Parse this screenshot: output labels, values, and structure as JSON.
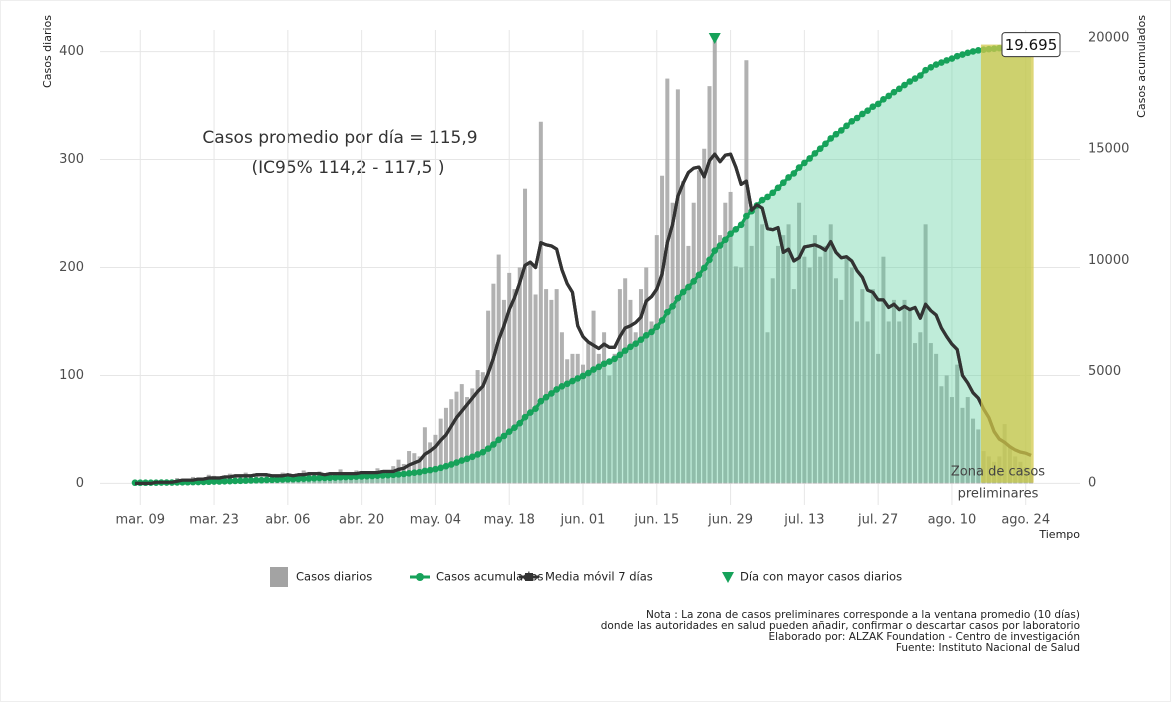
{
  "chart_data": {
    "type": "combo",
    "ylabel": "Casos diarios",
    "y2label": "Casos acumulados",
    "xlabel": "Tiempo",
    "annotations": [
      "Casos promedio por día = 115,9",
      "(IC95% 114,2 - 117,5 )"
    ],
    "notes": [
      "Nota :  La zona de casos preliminares corresponde a la ventana promedio (10 días)",
      "donde las autoridades en salud pueden añadir, confirmar o descartar casos por laboratorio",
      "Elaborado por: ALZAK Foundation - Centro de investigación",
      "Fuente: Instituto Nacional de Salud"
    ],
    "ylim": [
      -20,
      420
    ],
    "yticks": [
      0,
      100,
      200,
      300,
      400
    ],
    "y2lim": [
      -1000,
      20350
    ],
    "y2ticks": [
      0,
      5000,
      10000,
      15000,
      20000
    ],
    "grid": true,
    "area_color": "#5fd0a0",
    "categories": [
      null,
      "mar. 09",
      null,
      null,
      null,
      null,
      null,
      null,
      null,
      null,
      null,
      null,
      null,
      null,
      null,
      "mar. 23",
      null,
      null,
      null,
      null,
      null,
      null,
      null,
      null,
      null,
      null,
      null,
      null,
      null,
      "abr. 06",
      null,
      null,
      null,
      null,
      null,
      null,
      null,
      null,
      null,
      null,
      null,
      null,
      null,
      "abr. 20",
      null,
      null,
      null,
      null,
      null,
      null,
      null,
      null,
      null,
      null,
      null,
      null,
      null,
      "may. 04",
      null,
      null,
      null,
      null,
      null,
      null,
      null,
      null,
      null,
      null,
      null,
      null,
      null,
      "may. 18",
      null,
      null,
      null,
      null,
      null,
      null,
      null,
      null,
      null,
      null,
      null,
      null,
      null,
      "jun. 01",
      null,
      null,
      null,
      null,
      null,
      null,
      null,
      null,
      null,
      null,
      null,
      null,
      null,
      "jun. 15",
      null,
      null,
      null,
      null,
      null,
      null,
      null,
      null,
      null,
      null,
      null,
      null,
      null,
      "jun. 29",
      null,
      null,
      null,
      null,
      null,
      null,
      null,
      null,
      null,
      null,
      null,
      null,
      null,
      "jul. 13",
      null,
      null,
      null,
      null,
      null,
      null,
      null,
      null,
      null,
      null,
      null,
      null,
      null,
      "jul. 27",
      null,
      null,
      null,
      null,
      null,
      null,
      null,
      null,
      null,
      null,
      null,
      null,
      null,
      "ago. 10",
      null,
      null,
      null,
      null,
      null,
      null,
      null,
      null,
      null,
      null,
      null,
      null,
      null,
      "ago. 24",
      null
    ],
    "series": [
      {
        "name": "Casos diarios",
        "type": "bar",
        "color": "#a3a3a3",
        "values": [
          1,
          0,
          0,
          1,
          2,
          3,
          1,
          2,
          5,
          4,
          3,
          6,
          5,
          4,
          8,
          7,
          5,
          6,
          9,
          8,
          6,
          10,
          7,
          9,
          5,
          8,
          6,
          7,
          10,
          9,
          6,
          8,
          12,
          9,
          7,
          11,
          6,
          8,
          10,
          13,
          9,
          7,
          12,
          8,
          11,
          10,
          14,
          12,
          9,
          16,
          22,
          18,
          30,
          28,
          25,
          52,
          38,
          45,
          60,
          70,
          78,
          85,
          92,
          80,
          88,
          105,
          103,
          160,
          185,
          212,
          170,
          195,
          180,
          200,
          273,
          205,
          175,
          335,
          180,
          170,
          180,
          140,
          115,
          120,
          120,
          110,
          130,
          160,
          120,
          140,
          100,
          120,
          180,
          190,
          170,
          140,
          180,
          200,
          150,
          230,
          285,
          375,
          260,
          365,
          280,
          220,
          260,
          290,
          310,
          368,
          410,
          230,
          260,
          270,
          201,
          200,
          392,
          220,
          260,
          240,
          140,
          190,
          220,
          230,
          240,
          180,
          260,
          210,
          200,
          230,
          210,
          220,
          240,
          190,
          170,
          210,
          200,
          150,
          180,
          150,
          180,
          120,
          210,
          150,
          170,
          150,
          170,
          160,
          130,
          140,
          240,
          130,
          120,
          90,
          100,
          80,
          110,
          70,
          80,
          60,
          50,
          30,
          25,
          20,
          25,
          55,
          35,
          25,
          20,
          15,
          10
        ]
      },
      {
        "name": "Casos acumulados",
        "type": "line",
        "axis": "y2",
        "color": "#16a25a",
        "values": [
          1,
          1,
          1,
          2,
          4,
          7,
          8,
          10,
          15,
          19,
          22,
          28,
          33,
          37,
          45,
          52,
          57,
          63,
          72,
          80,
          86,
          96,
          103,
          112,
          117,
          125,
          131,
          138,
          148,
          157,
          163,
          171,
          183,
          192,
          199,
          210,
          216,
          224,
          234,
          247,
          256,
          263,
          275,
          283,
          294,
          304,
          318,
          330,
          339,
          355,
          377,
          395,
          425,
          453,
          478,
          530,
          568,
          613,
          673,
          743,
          821,
          906,
          998,
          1078,
          1166,
          1271,
          1374,
          1534,
          1719,
          1931,
          2101,
          2296,
          2476,
          2676,
          2949,
          3154,
          3329,
          3664,
          3844,
          4014,
          4194,
          4334,
          4449,
          4569,
          4689,
          4799,
          4929,
          5089,
          5209,
          5349,
          5449,
          5569,
          5749,
          5939,
          6109,
          6249,
          6429,
          6629,
          6779,
          7009,
          7294,
          7669,
          7929,
          8294,
          8574,
          8794,
          9054,
          9344,
          9654,
          10022,
          10432,
          10662,
          10922,
          11192,
          11393,
          11593,
          11985,
          12205,
          12465,
          12705,
          12845,
          13035,
          13255,
          13485,
          13725,
          13905,
          14165,
          14375,
          14575,
          14805,
          15015,
          15235,
          15475,
          15665,
          15835,
          16045,
          16245,
          16395,
          16575,
          16725,
          16905,
          17025,
          17235,
          17385,
          17555,
          17705,
          17875,
          18035,
          18165,
          18305,
          18545,
          18675,
          18795,
          18885,
          18985,
          19065,
          19175,
          19245,
          19325,
          19385,
          19435,
          19465,
          19490,
          19510,
          19535,
          19590,
          19625,
          19650,
          19670,
          19685,
          19695
        ]
      },
      {
        "name": "Media móvil 7 días",
        "type": "line",
        "color": "#333333",
        "values": [
          0,
          0,
          0,
          0,
          1,
          1,
          1,
          1,
          2,
          3,
          3,
          3,
          4,
          4,
          5,
          5,
          5,
          6,
          6,
          7,
          7,
          7,
          7,
          8,
          8,
          8,
          7,
          7,
          7,
          8,
          7,
          8,
          8,
          9,
          9,
          9,
          8,
          9,
          9,
          9,
          9,
          9,
          9,
          10,
          10,
          10,
          10,
          11,
          11,
          11,
          13,
          14,
          17,
          19,
          21,
          27,
          30,
          34,
          40,
          45,
          53,
          61,
          67,
          73,
          79,
          85,
          90,
          102,
          116,
          133,
          146,
          161,
          172,
          186,
          202,
          205,
          200,
          223,
          221,
          220,
          217,
          198,
          185,
          177,
          146,
          136,
          131,
          128,
          125,
          129,
          126,
          126,
          136,
          144,
          146,
          149,
          154,
          169,
          173,
          180,
          194,
          223,
          240,
          266,
          278,
          288,
          292,
          293,
          284,
          299,
          305,
          298,
          304,
          305,
          293,
          277,
          280,
          253,
          258,
          255,
          236,
          235,
          237,
          214,
          217,
          206,
          209,
          219,
          220,
          221,
          219,
          216,
          224,
          214,
          209,
          210,
          206,
          197,
          191,
          179,
          177,
          170,
          170,
          163,
          166,
          161,
          164,
          161,
          163,
          153,
          166,
          160,
          156,
          144,
          136,
          129,
          124,
          100,
          93,
          84,
          79,
          69,
          61,
          48,
          41,
          38,
          34,
          31,
          29,
          28,
          26
        ]
      }
    ],
    "peak_marker": {
      "name": "Día con mayor casos diarios",
      "color": "#16a25a"
    },
    "preliminary_zone": {
      "label_lines": [
        "Zona de casos",
        "preliminares"
      ],
      "days": 10,
      "color": "#d2c84a"
    },
    "last_value_label": {
      "value": 19695,
      "label": "19.695"
    }
  }
}
